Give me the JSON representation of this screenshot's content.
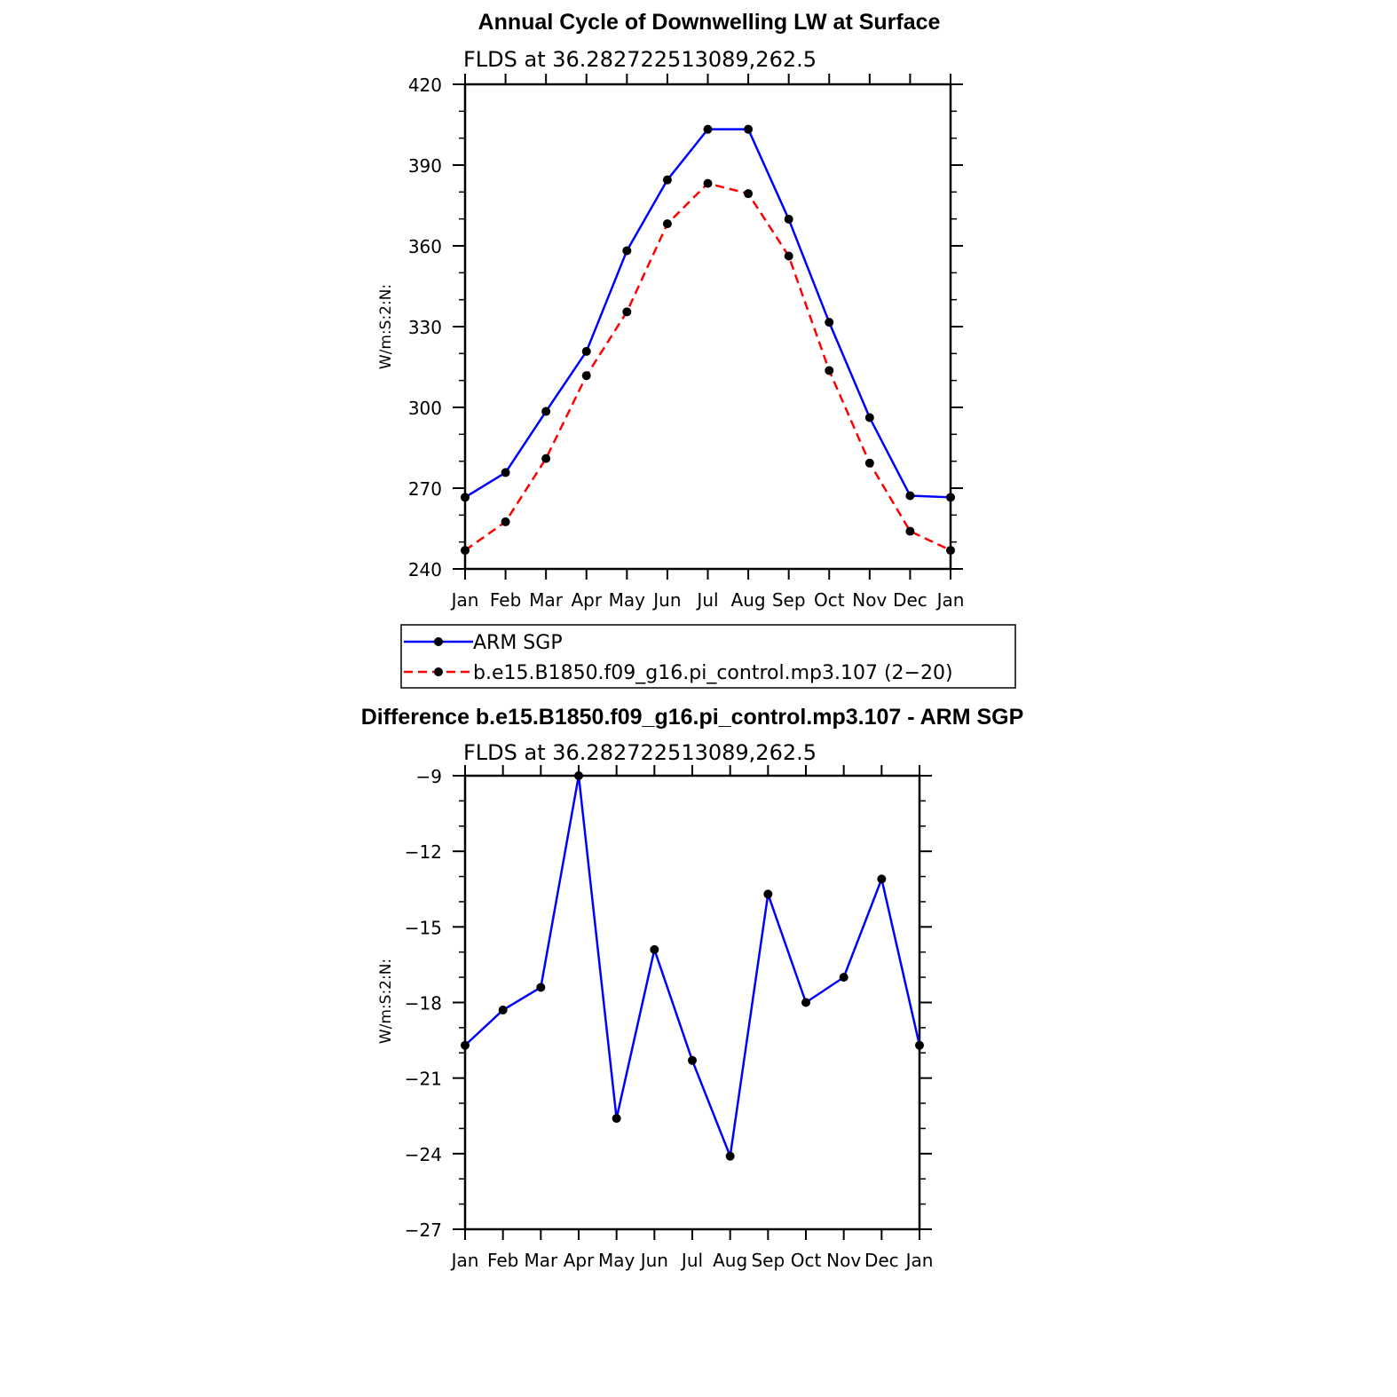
{
  "chart_data": [
    {
      "type": "line",
      "title": "Annual Cycle of Downwelling LW at Surface",
      "subtitle": "FLDS at 36.282722513089,262.5",
      "ylabel": "W/m:S:2:N:",
      "categories": [
        "Jan",
        "Feb",
        "Mar",
        "Apr",
        "May",
        "Jun",
        "Jul",
        "Aug",
        "Sep",
        "Oct",
        "Nov",
        "Dec",
        "Jan"
      ],
      "ylim": [
        240,
        420
      ],
      "yticks": [
        240,
        270,
        300,
        330,
        360,
        390,
        420
      ],
      "series": [
        {
          "name": "ARM SGP",
          "color": "#0000ff",
          "dashed": false,
          "values": [
            266.6,
            275.8,
            298.5,
            320.8,
            358.2,
            384.5,
            403.3,
            403.3,
            369.9,
            331.6,
            296.2,
            267.2,
            266.6
          ]
        },
        {
          "name": "b.e15.B1850.f09_g16.pi_control.mp3.107 (2−20)",
          "color": "#ff0000",
          "dashed": true,
          "values": [
            246.9,
            257.5,
            281.0,
            311.8,
            335.5,
            368.2,
            383.2,
            379.4,
            356.2,
            313.7,
            279.3,
            254.0,
            246.9
          ]
        }
      ],
      "legend": {
        "position": "below"
      }
    },
    {
      "type": "line",
      "title": "Difference b.e15.B1850.f09_g16.pi_control.mp3.107 - ARM SGP",
      "subtitle": "FLDS at 36.282722513089,262.5",
      "ylabel": "W/m:S:2:N:",
      "categories": [
        "Jan",
        "Feb",
        "Mar",
        "Apr",
        "May",
        "Jun",
        "Jul",
        "Aug",
        "Sep",
        "Oct",
        "Nov",
        "Dec",
        "Jan"
      ],
      "ylim": [
        -27,
        -9
      ],
      "yticks": [
        -27,
        -24,
        -21,
        -18,
        -15,
        -12,
        -9
      ],
      "series": [
        {
          "color": "#0000ff",
          "dashed": false,
          "values": [
            -19.7,
            -18.3,
            -17.4,
            -9.0,
            -22.6,
            -15.9,
            -20.3,
            -24.1,
            -13.7,
            -18.0,
            -17.0,
            -13.1,
            -19.7
          ]
        }
      ]
    }
  ]
}
